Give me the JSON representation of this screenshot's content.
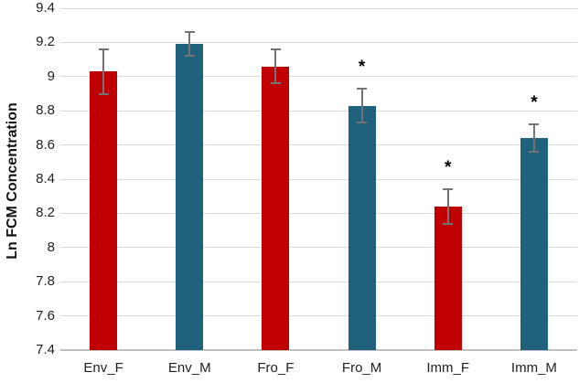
{
  "chart_data": {
    "type": "bar",
    "title": "",
    "ylabel": "Ln FCM Concentration",
    "xlabel": "",
    "categories": [
      "Env_F",
      "Env_M",
      "Fro_F",
      "Fro_M",
      "Imm_F",
      "Imm_M"
    ],
    "values": [
      9.03,
      9.19,
      9.06,
      8.83,
      8.24,
      8.64
    ],
    "errors": [
      0.13,
      0.07,
      0.1,
      0.1,
      0.1,
      0.08
    ],
    "significance": [
      false,
      false,
      false,
      true,
      true,
      true
    ],
    "significance_marker": "*",
    "ylim": [
      7.4,
      9.4
    ],
    "ytick_step": 0.2,
    "ytick_labels": [
      "7.4",
      "7.6",
      "7.8",
      "8",
      "8.2",
      "8.4",
      "8.6",
      "8.8",
      "9",
      "9.2",
      "9.4"
    ],
    "grid": true,
    "legend": "none",
    "bar_colors": [
      "#c00000",
      "#20617e",
      "#c00000",
      "#20617e",
      "#c00000",
      "#20617e"
    ],
    "colors": {
      "female_bar": "#c00000",
      "male_bar": "#20617e",
      "gridline": "#d9d9d9",
      "axis_line": "#bfbfbf",
      "error_bar": "#737373",
      "text": "#1f1f1f"
    }
  }
}
